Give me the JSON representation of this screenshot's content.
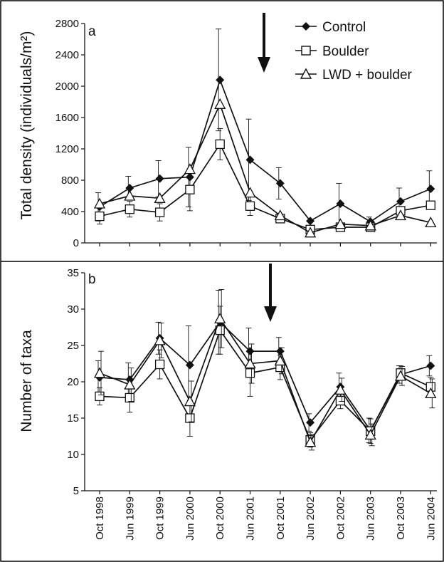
{
  "colors": {
    "line": "#111111",
    "control_marker": "#111111",
    "open_marker_fill": "#ffffff",
    "frame": "#000000",
    "background": "#ffffff"
  },
  "chart_data": [
    {
      "type": "line",
      "panel_label": "a",
      "ylabel": "Total density (individuals/m²)",
      "ylim": [
        0,
        2800
      ],
      "yticks": [
        0,
        400,
        800,
        1200,
        1600,
        2000,
        2400,
        2800
      ],
      "categories": [
        "Oct 1998",
        "Jun 1999",
        "Oct 1999",
        "Jun 2000",
        "Oct 2000",
        "Jun 2001",
        "Oct 2001",
        "Jun 2002",
        "Oct 2002",
        "Jun 2003",
        "Oct 2003",
        "Jun 2004"
      ],
      "annotation": {
        "type": "arrow",
        "position": "between Jun 2001 and Oct 2001"
      },
      "legend_position": "top-right",
      "series": [
        {
          "name": "Control",
          "marker": "diamond-filled",
          "values": [
            460,
            700,
            820,
            840,
            2080,
            1060,
            760,
            280,
            500,
            270,
            530,
            690
          ],
          "error": [
            180,
            150,
            230,
            380,
            650,
            520,
            200,
            0,
            260,
            60,
            170,
            230
          ]
        },
        {
          "name": "Boulder",
          "marker": "square-open",
          "values": [
            340,
            430,
            390,
            680,
            1260,
            470,
            310,
            170,
            200,
            200,
            410,
            480
          ],
          "error": [
            100,
            100,
            110,
            270,
            200,
            120,
            0,
            50,
            0,
            0,
            0,
            0
          ]
        },
        {
          "name": "LWD + boulder",
          "marker": "triangle-open",
          "values": [
            500,
            600,
            570,
            940,
            1770,
            640,
            350,
            130,
            240,
            220,
            350,
            260
          ],
          "error": [
            0,
            0,
            0,
            0,
            0,
            0,
            0,
            0,
            0,
            0,
            0,
            0
          ]
        }
      ]
    },
    {
      "type": "line",
      "panel_label": "b",
      "ylabel": "Number of taxa",
      "ylim": [
        5,
        35
      ],
      "yticks": [
        5,
        10,
        15,
        20,
        25,
        30,
        35
      ],
      "categories": [
        "Oct 1998",
        "Jun 1999",
        "Oct 1999",
        "Jun 2000",
        "Oct 2000",
        "Jun 2001",
        "Oct 2001",
        "Jun 2002",
        "Oct 2002",
        "Jun 2003",
        "Oct 2003",
        "Jun 2004"
      ],
      "annotation": {
        "type": "arrow",
        "position": "between Jun 2001 and Oct 2001"
      },
      "series": [
        {
          "name": "Control",
          "marker": "diamond-filled",
          "values": [
            20.6,
            20.3,
            26,
            22.3,
            28.2,
            24.2,
            24.2,
            14.4,
            19.3,
            13.3,
            21,
            22.2
          ],
          "error": [
            2.3,
            2.3,
            2.2,
            5.4,
            4.4,
            3.2,
            1.9,
            1.2,
            1.9,
            1.7,
            1.2,
            1.4
          ]
        },
        {
          "name": "Boulder",
          "marker": "square-open",
          "values": [
            18,
            17.8,
            22.4,
            15,
            27.1,
            21.2,
            22,
            12,
            17.4,
            13.2,
            21.2,
            19.3
          ],
          "error": [
            1.2,
            2,
            2,
            2.5,
            3.3,
            3.2,
            1.7,
            1,
            1.1,
            1.7,
            1,
            1.3
          ]
        },
        {
          "name": "LWD + boulder",
          "marker": "triangle-open",
          "values": [
            21.2,
            19.6,
            25.7,
            17.3,
            28.7,
            22.5,
            22.9,
            11.7,
            18.9,
            12.7,
            20.8,
            18.4
          ],
          "error": [
            3,
            2.3,
            2.4,
            2.8,
            4,
            2.7,
            1.8,
            1.1,
            1.6,
            1.5,
            1.3,
            2
          ]
        }
      ]
    }
  ]
}
